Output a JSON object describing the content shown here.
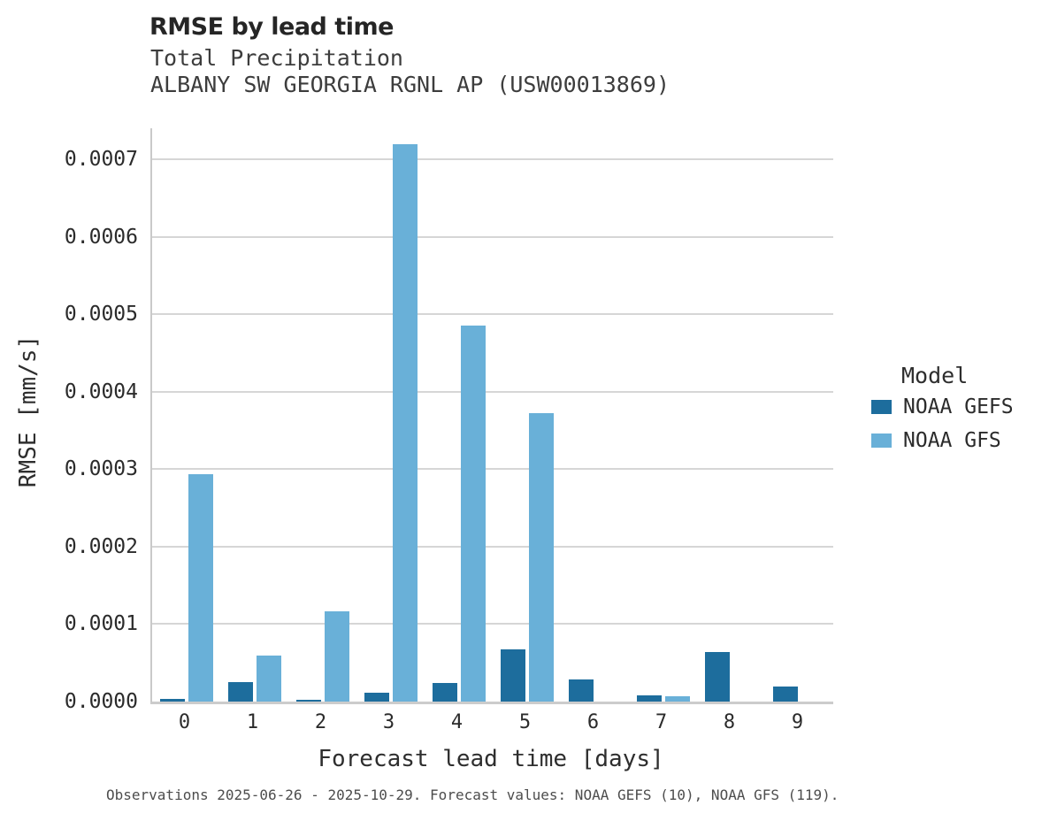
{
  "header": {
    "title": "RMSE by lead time",
    "subtitle_line1": "Total Precipitation",
    "subtitle_line2": "ALBANY SW GEORGIA RGNL AP (USW00013869)"
  },
  "chart_data": {
    "type": "bar",
    "title": "RMSE by lead time",
    "subtitle": [
      "Total Precipitation",
      "ALBANY SW GEORGIA RGNL AP (USW00013869)"
    ],
    "categories": [
      "0",
      "1",
      "2",
      "3",
      "4",
      "5",
      "6",
      "7",
      "8",
      "9"
    ],
    "series": [
      {
        "name": "NOAA GEFS",
        "color": "#1d6d9d",
        "values": [
          3e-06,
          2.5e-05,
          2e-06,
          1.1e-05,
          2.4e-05,
          6.7e-05,
          2.9e-05,
          8e-06,
          6.4e-05,
          2e-05
        ]
      },
      {
        "name": "NOAA GFS",
        "color": "#69b0d8",
        "values": [
          0.000293,
          5.9e-05,
          0.000116,
          0.00072,
          0.000485,
          0.000372,
          0,
          7e-06,
          0,
          0
        ]
      }
    ],
    "xlabel": "Forecast lead time [days]",
    "ylabel": "RMSE [mm/s]",
    "ylim": [
      0,
      0.00074
    ],
    "yticks": [
      0,
      0.0001,
      0.0002,
      0.0003,
      0.0004,
      0.0005,
      0.0006,
      0.0007
    ],
    "ytick_labels": [
      "0.0000",
      "0.0001",
      "0.0002",
      "0.0003",
      "0.0004",
      "0.0005",
      "0.0006",
      "0.0007"
    ],
    "grid": true,
    "legend_title": "Model",
    "legend_position": "right"
  },
  "legend": {
    "title": "Model",
    "entries": [
      {
        "label": "NOAA GEFS",
        "color": "#1d6d9d"
      },
      {
        "label": "NOAA GFS",
        "color": "#69b0d8"
      }
    ]
  },
  "footer": {
    "caption": "Observations 2025-06-26 - 2025-10-29. Forecast values: NOAA GEFS (10), NOAA GFS (119)."
  },
  "colors": {
    "gefs": "#1d6d9d",
    "gfs": "#69b0d8",
    "gridline": "#d6d6d6",
    "axis_line": "#cccccc",
    "title_text": "#252525",
    "subtitle_text": "#3d3d3d",
    "footer_text": "#4d4d4d"
  }
}
